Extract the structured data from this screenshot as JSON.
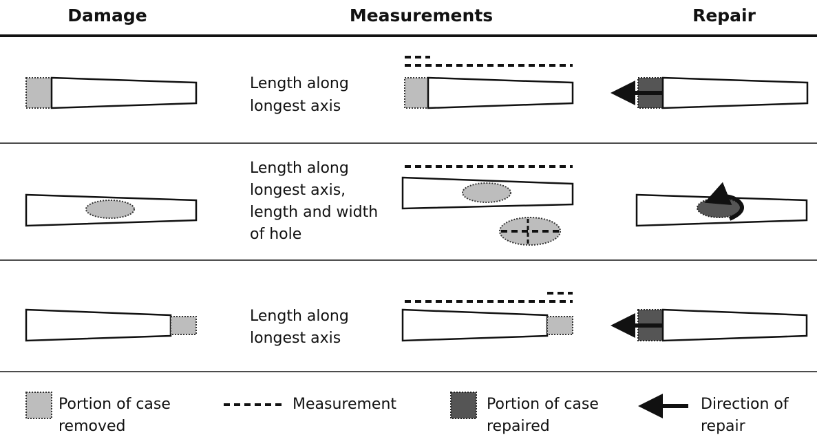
{
  "header": {
    "damage": "Damage",
    "measurements": "Measurements",
    "repair": "Repair"
  },
  "rows": [
    {
      "description": [
        "Length along",
        "longest axis"
      ]
    },
    {
      "description": [
        "Length along",
        "longest axis,",
        "length and width",
        "of hole"
      ]
    },
    {
      "description": [
        "Length along",
        "longest axis"
      ]
    }
  ],
  "legend": [
    {
      "label": [
        "Portion of case",
        "removed"
      ]
    },
    {
      "label": [
        "Measurement"
      ]
    },
    {
      "label": [
        "Portion of case",
        "repaired"
      ]
    },
    {
      "label": [
        "Direction of",
        "repair"
      ]
    }
  ]
}
